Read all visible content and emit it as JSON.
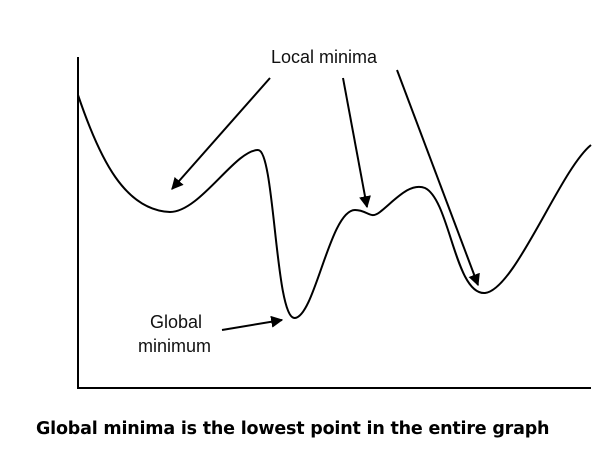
{
  "diagram": {
    "label_local": "Local minima",
    "label_global_line1": "Global",
    "label_global_line2": "minimum"
  },
  "caption": "Global minima is the lowest point in the entire graph",
  "colors": {
    "ink": "#000000",
    "background": "#ffffff"
  }
}
